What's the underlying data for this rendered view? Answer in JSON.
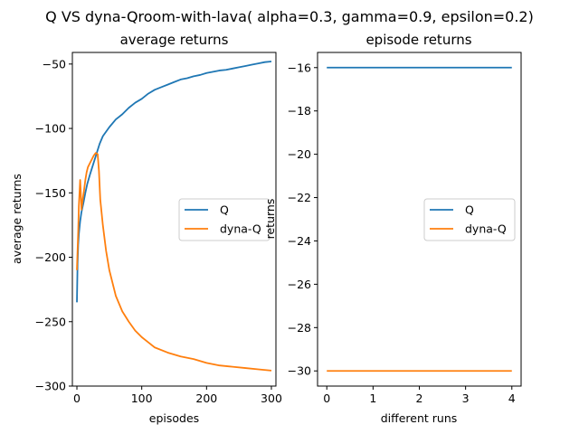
{
  "figure": {
    "suptitle": "Q VS dyna-Qroom-with-lava( alpha=0.3, gamma=0.9, epsilon=0.2)"
  },
  "colors": {
    "Q": "#1f77b4",
    "dyna-Q": "#ff7f0e"
  },
  "chart_data": [
    {
      "type": "line",
      "title": "average returns",
      "xlabel": "episodes",
      "ylabel": "average returns",
      "xlim": [
        -7,
        307
      ],
      "ylim": [
        -300,
        -41
      ],
      "xticks": [
        0,
        100,
        200,
        300
      ],
      "xticklabels": [
        "0",
        "100",
        "200",
        "300"
      ],
      "yticks": [
        -300,
        -250,
        -200,
        -150,
        -100,
        -50
      ],
      "yticklabels": [
        "−300",
        "−250",
        "−200",
        "−150",
        "−100",
        "−50"
      ],
      "grid": false,
      "legend": "center-right",
      "series": [
        {
          "name": "Q",
          "x": [
            0,
            1,
            2,
            3,
            5,
            7,
            10,
            13,
            16,
            20,
            25,
            30,
            35,
            40,
            50,
            60,
            70,
            80,
            90,
            100,
            110,
            120,
            130,
            140,
            150,
            160,
            170,
            180,
            190,
            200,
            210,
            220,
            230,
            240,
            250,
            260,
            270,
            280,
            290,
            300
          ],
          "y": [
            -235,
            -205,
            -190,
            -182,
            -172,
            -165,
            -158,
            -150,
            -143,
            -136,
            -128,
            -120,
            -112,
            -106,
            -99,
            -93,
            -89,
            -84,
            -80,
            -77,
            -73,
            -70,
            -68,
            -66,
            -64,
            -62,
            -61,
            -59.5,
            -58.5,
            -57,
            -56,
            -55,
            -54.5,
            -53.5,
            -52.5,
            -51.5,
            -50.5,
            -49.5,
            -48.5,
            -48
          ]
        },
        {
          "name": "dyna-Q",
          "x": [
            0,
            1,
            2,
            3,
            4,
            5,
            6,
            7,
            9,
            11,
            13,
            15,
            17,
            20,
            23,
            26,
            29,
            32,
            34,
            36,
            40,
            45,
            50,
            55,
            60,
            70,
            80,
            90,
            100,
            110,
            120,
            140,
            160,
            180,
            200,
            220,
            240,
            260,
            280,
            300
          ],
          "y": [
            -210,
            -195,
            -180,
            -160,
            -150,
            -140,
            -150,
            -163,
            -155,
            -148,
            -140,
            -134,
            -130,
            -127,
            -124,
            -121,
            -119,
            -120,
            -133,
            -155,
            -175,
            -195,
            -210,
            -220,
            -230,
            -242,
            -250,
            -257,
            -262,
            -266,
            -270,
            -274,
            -277,
            -279,
            -282,
            -284,
            -285,
            -286,
            -287,
            -288
          ]
        }
      ]
    },
    {
      "type": "line",
      "title": "episode returns",
      "xlabel": "different runs",
      "ylabel": "returns",
      "xlim": [
        -0.2,
        4.2
      ],
      "ylim": [
        -30.7,
        -15.3
      ],
      "xticks": [
        0,
        1,
        2,
        3,
        4
      ],
      "xticklabels": [
        "0",
        "1",
        "2",
        "3",
        "4"
      ],
      "yticks": [
        -30,
        -28,
        -26,
        -24,
        -22,
        -20,
        -18,
        -16
      ],
      "yticklabels": [
        "−30",
        "−28",
        "−26",
        "−24",
        "−22",
        "−20",
        "−18",
        "−16"
      ],
      "grid": false,
      "legend": "center-right",
      "series": [
        {
          "name": "Q",
          "x": [
            0,
            1,
            2,
            3,
            4
          ],
          "y": [
            -16,
            -16,
            -16,
            -16,
            -16
          ]
        },
        {
          "name": "dyna-Q",
          "x": [
            0,
            1,
            2,
            3,
            4
          ],
          "y": [
            -30,
            -30,
            -30,
            -30,
            -30
          ]
        }
      ]
    }
  ]
}
